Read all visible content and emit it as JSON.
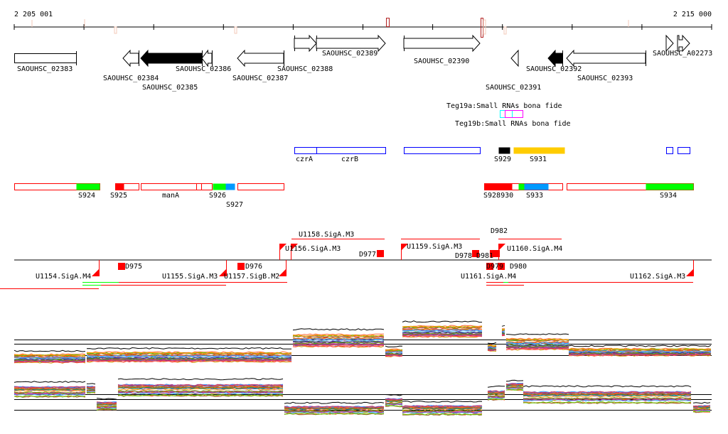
{
  "ruler": {
    "start_label": "2 205 001",
    "end_label": "2 215 000"
  },
  "genes": [
    {
      "id": "SAOUHSC_02383",
      "strand": "none",
      "fill": "outline"
    },
    {
      "id": "SAOUHSC_02384",
      "strand": "-",
      "fill": "outline"
    },
    {
      "id": "SAOUHSC_02385",
      "strand": "-",
      "fill": "filled"
    },
    {
      "id": "SAOUHSC_02386",
      "strand": "-",
      "fill": "outline"
    },
    {
      "id": "SAOUHSC_02387",
      "strand": "-",
      "fill": "outline"
    },
    {
      "id": "SAOUHSC_02388",
      "strand": "+",
      "fill": "outline"
    },
    {
      "id": "SAOUHSC_02389",
      "strand": "+",
      "fill": "outline"
    },
    {
      "id": "SAOUHSC_02390",
      "strand": "+",
      "fill": "outline"
    },
    {
      "id": "SAOUHSC_02391",
      "strand": "-",
      "fill": "outline"
    },
    {
      "id": "SAOUHSC_02392",
      "strand": "-",
      "fill": "filled"
    },
    {
      "id": "SAOUHSC_02393",
      "strand": "-",
      "fill": "outline"
    },
    {
      "id": "SAOUHSC_A02273",
      "strand": "+",
      "fill": "outline"
    }
  ],
  "small_rnas": [
    {
      "label": "Teg19a:Small RNAs bona fide",
      "color": "#00ffff"
    },
    {
      "label": "Teg19b:Small RNAs bona fide",
      "color": "#ff00ff"
    }
  ],
  "operon_track": {
    "labels": [
      "czrA",
      "czrB",
      "S929",
      "S931"
    ],
    "colors": {
      "outline": "#0000ff",
      "black": "#000000",
      "orange": "#ffcc00"
    }
  },
  "segment_track": {
    "labels": [
      "S924",
      "S925",
      "manA",
      "S926",
      "S927",
      "S928930",
      "S933",
      "S934"
    ],
    "colors": {
      "outline": "#ff0000",
      "red": "#ff0000",
      "green": "#00ff00",
      "blue": "#0099ff"
    }
  },
  "promoter_track": {
    "upper_labels": [
      "U1156.SigA.M3",
      "U1158.SigA.M3",
      "D977",
      "U1159.SigA.M3",
      "D978",
      "D981",
      "D982",
      "U1160.SigA.M4"
    ],
    "lower_labels": [
      "U1154.SigA.M4",
      "D975",
      "U1155.SigA.M3",
      "U1157.SigB.M2",
      "D976",
      "U1161.SigA.M4",
      "D979",
      "D980",
      "U1162.SigA.M3"
    ]
  }
}
